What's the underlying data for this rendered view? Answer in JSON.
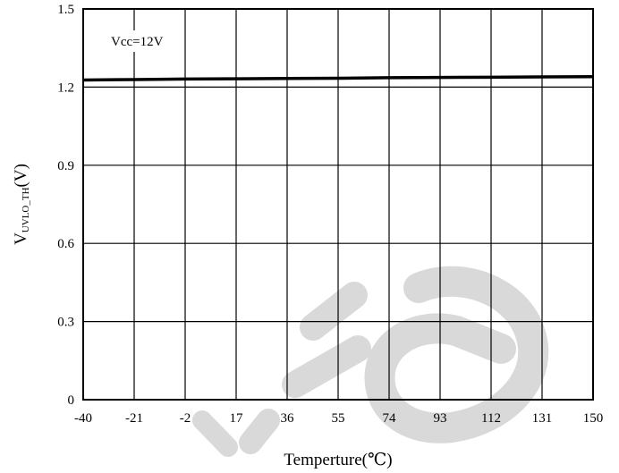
{
  "chart_data": {
    "type": "line",
    "xlabel": "Temperture(℃)",
    "ylabel_main": "V",
    "ylabel_sub": "UVLO_TH",
    "ylabel_unit": "(V)",
    "annotation": "Vcc=12V",
    "x_ticks": [
      "-40",
      "-21",
      "-2",
      "17",
      "36",
      "55",
      "74",
      "93",
      "112",
      "131",
      "150"
    ],
    "y_ticks": [
      "0",
      "0.3",
      "0.6",
      "0.9",
      "1.2",
      "1.5"
    ],
    "xlim": [
      -40,
      150
    ],
    "ylim": [
      0,
      1.5
    ],
    "grid": true,
    "series": [
      {
        "x": [
          -40,
          -21,
          -2,
          17,
          36,
          55,
          74,
          93,
          112,
          131,
          150
        ],
        "values": [
          1.227,
          1.229,
          1.231,
          1.232,
          1.233,
          1.234,
          1.236,
          1.237,
          1.238,
          1.239,
          1.24
        ]
      }
    ],
    "colors": {
      "line": "#000000",
      "grid": "#000000",
      "watermark": "#d9d9d9"
    }
  }
}
